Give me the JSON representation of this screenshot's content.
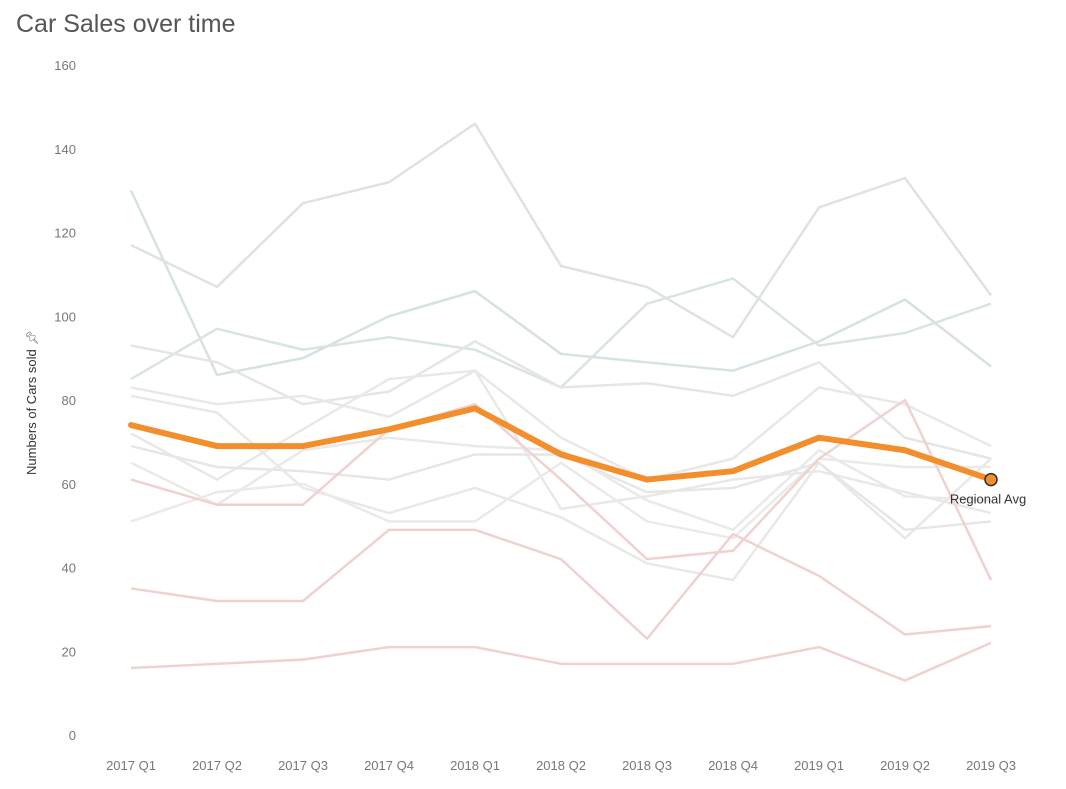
{
  "chart_data": {
    "type": "line",
    "title": "Car Sales over time",
    "xlabel": "",
    "ylabel": "Numbers of Cars sold",
    "ylim": [
      0,
      160
    ],
    "yticks": [
      0,
      20,
      40,
      60,
      80,
      100,
      120,
      140,
      160
    ],
    "grid": false,
    "legend": "none",
    "categories": [
      "2017 Q1",
      "2017 Q2",
      "2017 Q3",
      "2017 Q4",
      "2018 Q1",
      "2018 Q2",
      "2018 Q3",
      "2018 Q4",
      "2019 Q1",
      "2019 Q2",
      "2019 Q3"
    ],
    "highlight": {
      "name": "Regional Avg",
      "color": "#f28e2b",
      "values": [
        74,
        69,
        69,
        73,
        78,
        67,
        61,
        63,
        71,
        68,
        61
      ]
    },
    "background_series": [
      {
        "color": "#d5e2dd",
        "values": [
          130,
          86,
          90,
          100,
          106,
          91,
          89,
          87,
          94,
          104,
          88
        ]
      },
      {
        "color": "#dce3e0",
        "values": [
          117,
          107,
          127,
          132,
          146,
          112,
          107,
          95,
          126,
          133,
          105
        ]
      },
      {
        "color": "#d9e3df",
        "values": [
          85,
          97,
          92,
          95,
          92,
          83,
          103,
          109,
          93,
          96,
          103
        ]
      },
      {
        "color": "#e5e5e5",
        "values": [
          93,
          89,
          79,
          82,
          94,
          83,
          84,
          81,
          89,
          71,
          66
        ]
      },
      {
        "color": "#e8e8e8",
        "values": [
          83,
          79,
          81,
          76,
          87,
          71,
          61,
          66,
          83,
          79,
          69
        ]
      },
      {
        "color": "#e8e8e8",
        "values": [
          81,
          77,
          59,
          53,
          59,
          52,
          41,
          37,
          65,
          47,
          66
        ]
      },
      {
        "color": "#e8e8e8",
        "values": [
          72,
          61,
          73,
          85,
          87,
          54,
          57,
          61,
          63,
          58,
          53
        ]
      },
      {
        "color": "#e6e6e6",
        "values": [
          69,
          64,
          63,
          61,
          67,
          67,
          58,
          59,
          65,
          49,
          51
        ]
      },
      {
        "color": "#e9e9e9",
        "values": [
          65,
          55,
          68,
          71,
          69,
          68,
          56,
          49,
          68,
          57,
          56
        ]
      },
      {
        "color": "#eaeaea",
        "values": [
          51,
          58,
          60,
          51,
          51,
          65,
          51,
          47,
          66,
          64,
          64
        ]
      },
      {
        "color": "#efd2d0",
        "values": [
          61,
          55,
          55,
          73,
          79,
          61,
          42,
          44,
          66,
          80,
          37
        ]
      },
      {
        "color": "#efd2d0",
        "values": [
          35,
          32,
          32,
          49,
          49,
          42,
          23,
          48,
          38,
          24,
          26
        ]
      },
      {
        "color": "#efd2d0",
        "values": [
          16,
          17,
          18,
          21,
          21,
          17,
          17,
          17,
          21,
          13,
          22
        ]
      }
    ],
    "annotation": "Regional Avg"
  }
}
